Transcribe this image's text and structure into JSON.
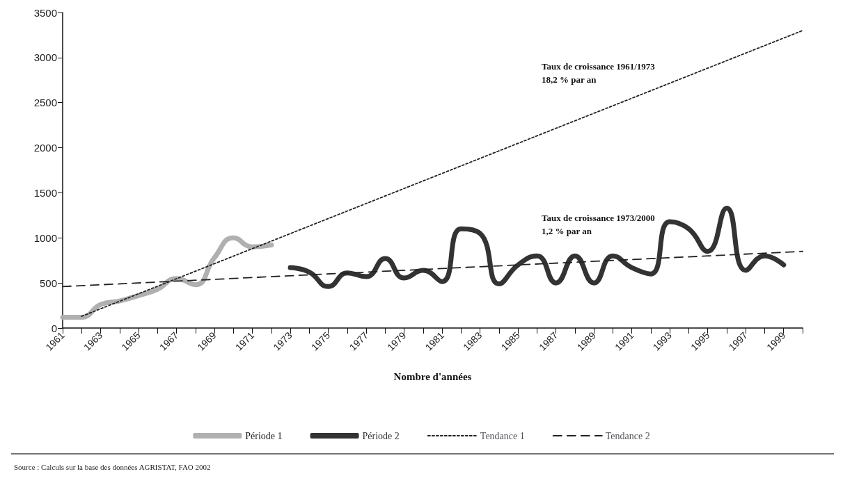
{
  "chart_data": {
    "type": "line",
    "xlabel": "Nombre d'années",
    "legend": "bottom",
    "marker": "none",
    "xlim": [
      1961,
      2000
    ],
    "xticks": [
      1961,
      {
        "value": 1962,
        "label": null
      },
      1963,
      {
        "value": 1964,
        "label": null
      },
      1965,
      {
        "value": 1966,
        "label": null
      },
      1967,
      {
        "value": 1968,
        "label": null
      },
      1969,
      {
        "value": 1970,
        "label": null
      },
      1971,
      {
        "value": 1972,
        "label": null
      },
      1973,
      {
        "value": 1974,
        "label": null
      },
      1975,
      {
        "value": 1976,
        "label": null
      },
      1977,
      {
        "value": 1978,
        "label": null
      },
      1979,
      {
        "value": 1980,
        "label": null
      },
      1981,
      {
        "value": 1982,
        "label": null
      },
      1983,
      {
        "value": 1984,
        "label": null
      },
      1985,
      {
        "value": 1986,
        "label": null
      },
      1987,
      {
        "value": 1988,
        "label": null
      },
      1989,
      {
        "value": 1990,
        "label": null
      },
      1991,
      {
        "value": 1992,
        "label": null
      },
      1993,
      {
        "value": 1994,
        "label": null
      },
      1995,
      {
        "value": 1996,
        "label": null
      },
      1997,
      {
        "value": 1998,
        "label": null
      },
      1999,
      {
        "value": 2000,
        "label": null
      }
    ],
    "ylim": [
      0,
      3500
    ],
    "yticks": [
      0,
      500,
      1000,
      1500,
      2000,
      2500,
      3000,
      3500
    ],
    "series": [
      {
        "name": "Période 1",
        "color": "#b0b0b0",
        "line_style": "solid",
        "x": [
          1961,
          1962,
          1963,
          1964,
          1965,
          1966,
          1967,
          1968,
          1969,
          1970,
          1971,
          1972
        ],
        "values": [
          120,
          120,
          260,
          300,
          360,
          430,
          550,
          480,
          780,
          1000,
          900,
          920
        ]
      },
      {
        "name": "Période 2",
        "color": "#333333",
        "line_style": "solid",
        "x": [
          1973,
          1974,
          1975,
          1976,
          1977,
          1978,
          1979,
          1980,
          1981,
          1982,
          1983,
          1984,
          1985,
          1986,
          1987,
          1988,
          1989,
          1990,
          1991,
          1992,
          1993,
          1994,
          1995,
          1996,
          1997,
          1998,
          1999
        ],
        "values": [
          670,
          620,
          460,
          610,
          570,
          770,
          555,
          640,
          515,
          1100,
          1050,
          490,
          700,
          800,
          500,
          800,
          500,
          800,
          670,
          600,
          1180,
          1100,
          850,
          1330,
          640,
          800,
          700
        ]
      },
      {
        "name": "Tendance 1",
        "color": "#222222",
        "line_style": "dotted",
        "x": [
          1962,
          2000
        ],
        "values": [
          130,
          3300
        ]
      },
      {
        "name": "Tendance 2",
        "color": "#222222",
        "line_style": "dashed",
        "x": [
          1961,
          2000
        ],
        "values": [
          460,
          850
        ]
      }
    ],
    "annotations": [
      "Taux de croissance 1961/1973\n18,2 % par an",
      "Taux de croissance 1973/2000\n1,2 % par an",
      "Source : Calculs sur la base des données AGRISTAT, FAO 2002"
    ]
  }
}
